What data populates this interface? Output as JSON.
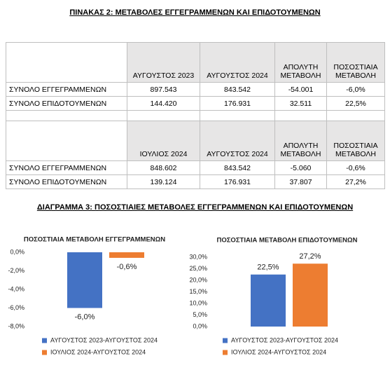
{
  "table_title": "ΠΙΝΑΚΑΣ 2: ΜΕΤΑΒΟΛΕΣ ΕΓΓΕΓΡΑΜΜΕΝΩΝ ΚΑΙ ΕΠΙΔΟΤΟΥΜΕΝΩΝ",
  "tables": [
    {
      "columns": [
        "ΑΥΓΟΥΣΤΟΣ 2023",
        "ΑΥΓΟΥΣΤΟΣ 2024",
        "ΑΠΟΛΥΤΗ ΜΕΤΑΒΟΛΗ",
        "ΠΟΣΟΣΤΙΑΙΑ ΜΕΤΑΒΟΛΗ"
      ],
      "rows": [
        {
          "label": "ΣΥΝΟΛΟ ΕΓΓΕΓΡΑΜΜΕΝΩΝ",
          "cells": [
            "897.543",
            "843.542",
            "-54.001",
            "-6,0%"
          ]
        },
        {
          "label": "ΣΥΝΟΛΟ ΕΠΙΔΟΤΟΥΜΕΝΩΝ",
          "cells": [
            "144.420",
            "176.931",
            "32.511",
            "22,5%"
          ]
        }
      ]
    },
    {
      "columns": [
        "ΙΟΥΛΙΟΣ 2024",
        "ΑΥΓΟΥΣΤΟΣ 2024",
        "ΑΠΟΛΥΤΗ ΜΕΤΑΒΟΛΗ",
        "ΠΟΣΟΣΤΙΑΙΑ ΜΕΤΑΒΟΛΗ"
      ],
      "rows": [
        {
          "label": "ΣΥΝΟΛΟ ΕΓΓΕΓΡΑΜΜΕΝΩΝ",
          "cells": [
            "848.602",
            "843.542",
            "-5.060",
            "-0,6%"
          ]
        },
        {
          "label": "ΣΥΝΟΛΟ ΕΠΙΔΟΤΟΥΜΕΝΩΝ",
          "cells": [
            "139.124",
            "176.931",
            "37.807",
            "27,2%"
          ]
        }
      ]
    }
  ],
  "diagram_title": "ΔΙΑΓΡΑΜΜΑ 3: ΠΟΣΟΣΤΙΑΙΕΣ ΜΕΤΑΒΟΛΕΣ ΕΓΓΕΓΡΑΜΜΕΝΩΝ ΚΑΙ ΕΠΙΔΟΤΟΥΜΕΝΩΝ",
  "chart_data": [
    {
      "type": "bar",
      "title": "ΠΟΣΟΣΤΙΑΙΑ ΜΕΤΑΒΟΛΗ ΕΓΓΕΓΡΑΜΜΕΝΩΝ",
      "categories": [
        null
      ],
      "series": [
        {
          "name": "ΑΥΓΟΥΣΤΟΣ 2023-ΑΥΓΟΥΣΤΟΣ 2024",
          "color": "#4472c4",
          "values": [
            -6.0
          ],
          "value_labels": [
            "-6,0%"
          ]
        },
        {
          "name": "ΙΟΥΛΙΟΣ 2024-ΑΥΓΟΥΣΤΟΣ 2024",
          "color": "#ed7d31",
          "values": [
            -0.6
          ],
          "value_labels": [
            "-0,6%"
          ]
        }
      ],
      "ylim": [
        -8,
        0
      ],
      "yticks": [
        {
          "value": 0,
          "label": "0,0%"
        },
        {
          "value": -2,
          "label": "-2,0%"
        },
        {
          "value": -4,
          "label": "-4,0%"
        },
        {
          "value": -6,
          "label": "-6,0%"
        },
        {
          "value": -8,
          "label": "-8,0%"
        }
      ],
      "grid": false
    },
    {
      "type": "bar",
      "title": "ΠΟΣΟΣΤΙΑΙΑ ΜΕΤΑΒΟΛΗ ΕΠΙΔΟΤΟΥΜΕΝΩΝ",
      "categories": [
        null
      ],
      "series": [
        {
          "name": "ΑΥΓΟΥΣΤΟΣ 2023-ΑΥΓΟΥΣΤΟΣ 2024",
          "color": "#4472c4",
          "values": [
            22.5
          ],
          "value_labels": [
            "22,5%"
          ]
        },
        {
          "name": "ΙΟΥΛΙΟΣ 2024-ΑΥΓΟΥΣΤΟΣ 2024",
          "color": "#ed7d31",
          "values": [
            27.2
          ],
          "value_labels": [
            "27,2%"
          ]
        }
      ],
      "ylim": [
        0,
        30
      ],
      "yticks": [
        {
          "value": 0,
          "label": "0,0%"
        },
        {
          "value": 5,
          "label": "5,0%"
        },
        {
          "value": 10,
          "label": "10,0%"
        },
        {
          "value": 15,
          "label": "15,0%"
        },
        {
          "value": 20,
          "label": "20,0%"
        },
        {
          "value": 25,
          "label": "25,0%"
        },
        {
          "value": 30,
          "label": "30,0%"
        }
      ],
      "grid": false
    }
  ]
}
